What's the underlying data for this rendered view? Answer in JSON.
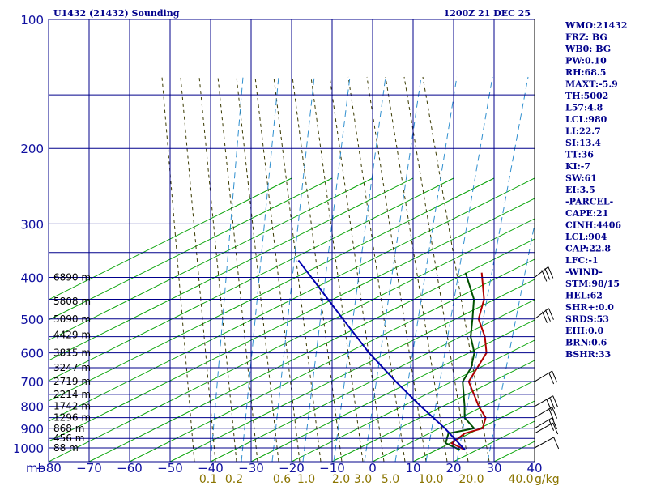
{
  "chart_data": {
    "type": "skew-t sounding",
    "title": "U1432 (21432) Sounding",
    "valid_time": "1200Z 21 DEC 25",
    "pressure_unit_label": "mb",
    "pressure_ticks": [
      100,
      200,
      300,
      400,
      500,
      600,
      700,
      800,
      900,
      1000
    ],
    "pressure_range": [
      100,
      1050
    ],
    "temperature_ticks": [
      -80,
      -70,
      -60,
      -50,
      -40,
      -30,
      -20,
      -10,
      0,
      10,
      20,
      30,
      40
    ],
    "temperature_tick_labels": [
      "−80",
      "−70",
      "−60",
      "−50",
      "−40",
      "−30",
      "−20",
      "−10",
      "0",
      "10",
      "20",
      "30",
      "40"
    ],
    "mixing_ratio_ticks": [
      0.1,
      0.2,
      0.6,
      1.0,
      2.0,
      3.0,
      5.0,
      10.0,
      20.0,
      40.0
    ],
    "mixing_ratio_labels": [
      "0.1",
      "0.2",
      "0.6",
      "1.0",
      "2.0",
      "3.0",
      "5.0",
      "10.0",
      "20.0",
      "40.0"
    ],
    "mixing_ratio_unit": "g/kg",
    "height_labels": [
      {
        "p": 400,
        "text": "6890 m"
      },
      {
        "p": 455,
        "text": "5808 m"
      },
      {
        "p": 500,
        "text": "5090 m"
      },
      {
        "p": 545,
        "text": "4429 m"
      },
      {
        "p": 600,
        "text": "3815 m"
      },
      {
        "p": 650,
        "text": "3247 m"
      },
      {
        "p": 700,
        "text": "2719 m"
      },
      {
        "p": 750,
        "text": "2214 m"
      },
      {
        "p": 800,
        "text": "1742 m"
      },
      {
        "p": 850,
        "text": "1296 m"
      },
      {
        "p": 900,
        "text": "868 m"
      },
      {
        "p": 950,
        "text": "456 m"
      },
      {
        "p": 1000,
        "text": "88 m"
      }
    ],
    "series": [
      {
        "name": "temperature",
        "color": "#b00000",
        "points": [
          {
            "p": 1010,
            "t": -16.8
          },
          {
            "p": 975,
            "t": -21.5
          },
          {
            "p": 925,
            "t": -20.5
          },
          {
            "p": 900,
            "t": -17.2
          },
          {
            "p": 850,
            "t": -18.8
          },
          {
            "p": 800,
            "t": -23.0
          },
          {
            "p": 700,
            "t": -31.0
          },
          {
            "p": 600,
            "t": -33.0
          },
          {
            "p": 550,
            "t": -37.0
          },
          {
            "p": 500,
            "t": -42.5
          },
          {
            "p": 450,
            "t": -45.5
          },
          {
            "p": 390,
            "t": -52.0
          }
        ]
      },
      {
        "name": "dewpoint",
        "color": "#005000",
        "points": [
          {
            "p": 1010,
            "t": -18.0
          },
          {
            "p": 975,
            "t": -23.0
          },
          {
            "p": 925,
            "t": -24.5
          },
          {
            "p": 900,
            "t": -19.3
          },
          {
            "p": 850,
            "t": -24.0
          },
          {
            "p": 800,
            "t": -26.5
          },
          {
            "p": 700,
            "t": -32.5
          },
          {
            "p": 650,
            "t": -33.5
          },
          {
            "p": 600,
            "t": -36.0
          },
          {
            "p": 550,
            "t": -40.5
          },
          {
            "p": 500,
            "t": -44.0
          },
          {
            "p": 450,
            "t": -48.0
          },
          {
            "p": 390,
            "t": -56.0
          }
        ]
      },
      {
        "name": "parcel",
        "color": "#0000b0",
        "points": [
          {
            "p": 1010,
            "t": -16.8
          },
          {
            "p": 900,
            "t": -26.5
          },
          {
            "p": 800,
            "t": -37.3
          },
          {
            "p": 700,
            "t": -49.0
          },
          {
            "p": 600,
            "t": -62.0
          },
          {
            "p": 500,
            "t": -76.0
          },
          {
            "p": 400,
            "t": -93.0
          },
          {
            "p": 365,
            "t": -100.0
          }
        ]
      }
    ],
    "wind_barbs": [
      {
        "p": 400,
        "dir": 290,
        "speed_kt": 30
      },
      {
        "p": 500,
        "dir": 285,
        "speed_kt": 25
      },
      {
        "p": 700,
        "dir": 250,
        "speed_kt": 15
      },
      {
        "p": 800,
        "dir": 240,
        "speed_kt": 25
      },
      {
        "p": 850,
        "dir": 250,
        "speed_kt": 20
      },
      {
        "p": 900,
        "dir": 250,
        "speed_kt": 15
      },
      {
        "p": 925,
        "dir": 240,
        "speed_kt": 10
      },
      {
        "p": 1000,
        "dir": 230,
        "speed_kt": 5
      }
    ],
    "grid": true,
    "legend": "none"
  },
  "stats": [
    "WMO:21432",
    "FRZ: BG",
    "WB0: BG",
    "PW:0.10",
    "RH:68.5",
    "MAXT:-5.9",
    "TH:5002",
    "L57:4.8",
    "LCL:980",
    "LI:22.7",
    "SI:13.4",
    "TT:36",
    "KI:-7",
    "SW:61",
    "EI:3.5",
    "-PARCEL-",
    "CAPE:21",
    "CINH:4406",
    "LCL:904",
    "CAP:22.8",
    "LFC:-1",
    "-WIND-",
    "STM:98/15",
    "HEL:62",
    "SHR+:0.0",
    "SRDS:53",
    "EHI:0.0",
    "BRN:0.6",
    "BSHR:33"
  ],
  "colors": {
    "grid": "#00008b",
    "dry_adiabat": "#00a000",
    "moist_adiabat": "#3a3a00",
    "mixing_ratio": "#2f8fcf",
    "header": "#00008b"
  }
}
